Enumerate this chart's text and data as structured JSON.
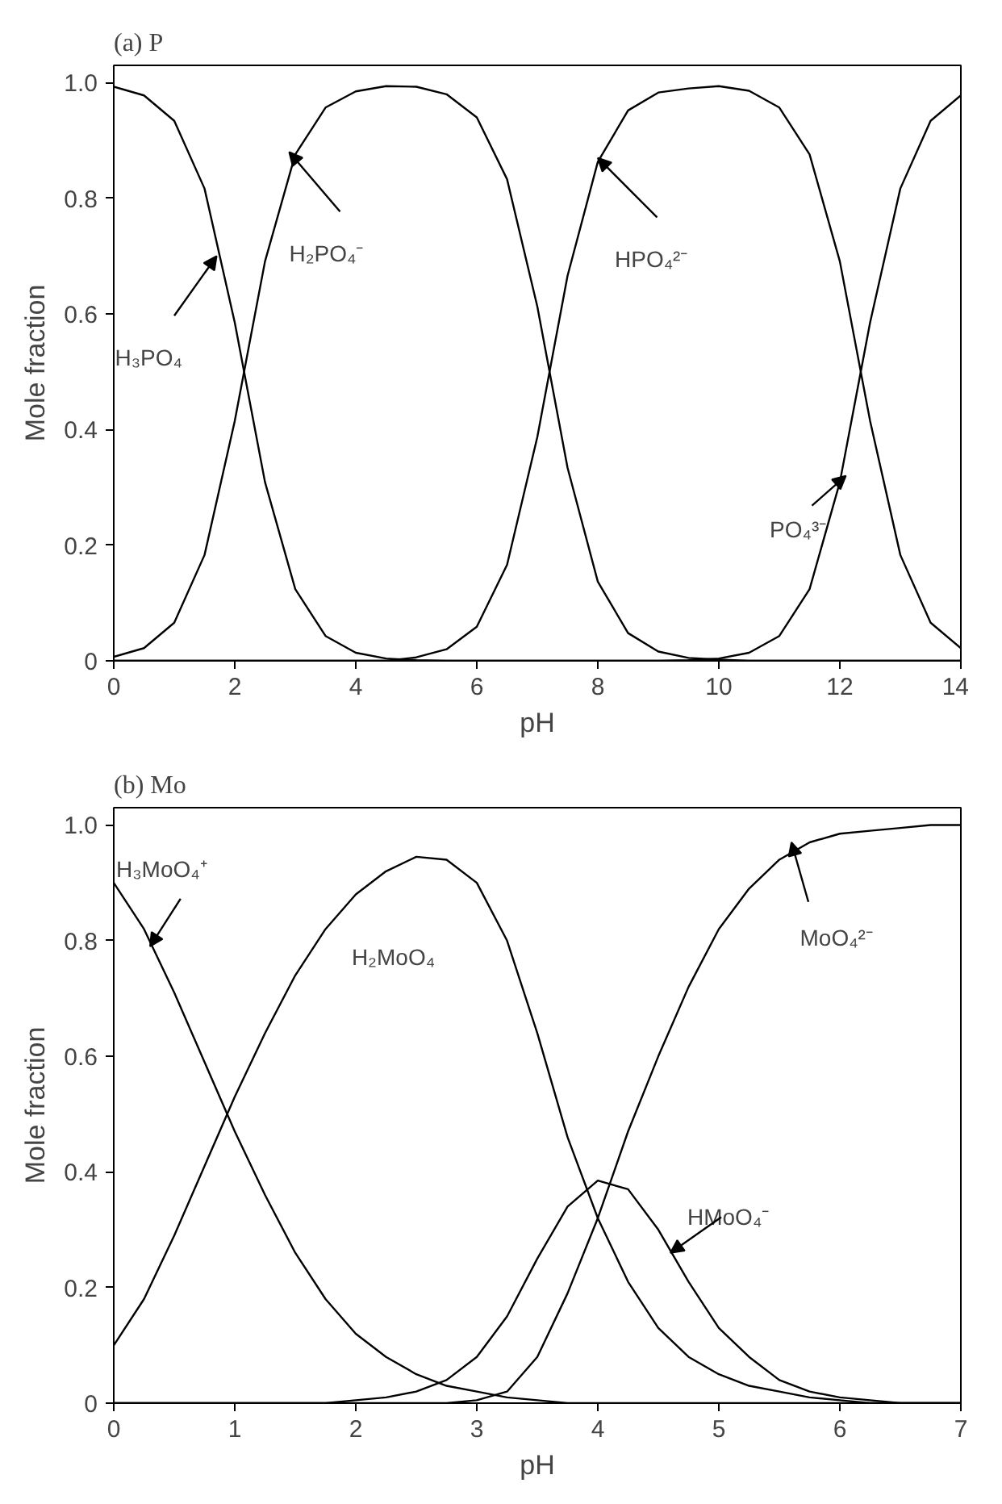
{
  "chart_data": [
    {
      "type": "line",
      "title": "(a) P",
      "xlabel": "pH",
      "ylabel": "Mole fraction",
      "x": [
        0,
        0.5,
        1,
        1.5,
        2,
        2.5,
        3,
        3.5,
        4,
        4.5,
        5,
        5.5,
        6,
        6.5,
        7,
        7.5,
        8,
        8.5,
        9,
        9.5,
        10,
        10.5,
        11,
        11.5,
        12,
        12.5,
        13,
        13.5,
        14
      ],
      "series": [
        {
          "color": "#000000",
          "values": [
            0.993,
            0.978,
            0.934,
            0.817,
            0.585,
            0.309,
            0.124,
            0.043,
            0.014,
            0.004,
            0.001,
            0,
            0,
            0,
            0,
            0,
            0,
            0,
            0,
            0,
            0,
            0,
            0,
            0,
            0,
            0,
            0,
            0,
            0
          ]
        },
        {
          "color": "#000000",
          "values": [
            0.007,
            0.022,
            0.066,
            0.183,
            0.415,
            0.691,
            0.876,
            0.957,
            0.985,
            0.994,
            0.993,
            0.98,
            0.94,
            0.833,
            0.613,
            0.334,
            0.137,
            0.048,
            0.016,
            0.005,
            0.002,
            0,
            0,
            0,
            0,
            0,
            0,
            0,
            0
          ]
        },
        {
          "color": "#000000",
          "values": [
            0,
            0,
            0,
            0,
            0,
            0,
            0,
            0,
            0,
            0,
            0.006,
            0.02,
            0.059,
            0.166,
            0.387,
            0.666,
            0.863,
            0.952,
            0.983,
            0.99,
            0.994,
            0.986,
            0.957,
            0.876,
            0.691,
            0.415,
            0.183,
            0.066,
            0.022
          ]
        },
        {
          "color": "#000000",
          "values": [
            0,
            0,
            0,
            0,
            0,
            0,
            0,
            0,
            0,
            0,
            0,
            0,
            0,
            0,
            0,
            0,
            0,
            0,
            0,
            0.001,
            0.004,
            0.014,
            0.043,
            0.124,
            0.309,
            0.585,
            0.817,
            0.934,
            0.978
          ]
        }
      ],
      "xlim": [
        0,
        14
      ],
      "ylim": [
        0,
        1.03
      ],
      "xticks": [
        0,
        2,
        4,
        6,
        8,
        10,
        12,
        14
      ],
      "yticks": [
        0,
        {
          "value": 0.2,
          "label": "0.2"
        },
        {
          "value": 0.4,
          "label": "0.4"
        },
        {
          "value": 0.6,
          "label": "0.6"
        },
        {
          "value": 0.8,
          "label": "0.8"
        },
        {
          "value": 1,
          "label": "1.0"
        }
      ],
      "annotations": [
        {
          "text": "H₃PO₄",
          "x": 1.7,
          "y": 0.7
        },
        {
          "text": "H₂PO₄⁻",
          "x": 2.9,
          "y": 0.88
        },
        {
          "text": "HPO₄²⁻",
          "x": 8.0,
          "y": 0.87
        },
        {
          "text": "PO₄³⁻",
          "x": 12.1,
          "y": 0.32
        }
      ]
    },
    {
      "type": "line",
      "title": "(b) Mo",
      "xlabel": "pH",
      "ylabel": "Mole fraction",
      "x": [
        0,
        0.25,
        0.5,
        0.75,
        1,
        1.25,
        1.5,
        1.75,
        2,
        2.25,
        2.5,
        2.75,
        3,
        3.25,
        3.5,
        3.75,
        4,
        4.25,
        4.5,
        4.75,
        5,
        5.25,
        5.5,
        5.75,
        6,
        6.25,
        6.5,
        6.75,
        7
      ],
      "series": [
        {
          "color": "#000000",
          "values": [
            0.9,
            0.82,
            0.71,
            0.59,
            0.47,
            0.36,
            0.26,
            0.18,
            0.12,
            0.08,
            0.05,
            0.03,
            0.02,
            0.01,
            0.005,
            0,
            0,
            0,
            0,
            0,
            0,
            0,
            0,
            0,
            0,
            0,
            0,
            0,
            0
          ]
        },
        {
          "color": "#000000",
          "values": [
            0.1,
            0.18,
            0.29,
            0.41,
            0.53,
            0.64,
            0.74,
            0.82,
            0.88,
            0.92,
            0.945,
            0.94,
            0.9,
            0.8,
            0.64,
            0.46,
            0.32,
            0.21,
            0.13,
            0.08,
            0.05,
            0.03,
            0.02,
            0.01,
            0.005,
            0,
            0,
            0,
            0
          ]
        },
        {
          "color": "#000000",
          "values": [
            0,
            0,
            0,
            0,
            0,
            0,
            0,
            0,
            0.005,
            0.01,
            0.02,
            0.04,
            0.08,
            0.15,
            0.25,
            0.34,
            0.385,
            0.37,
            0.3,
            0.21,
            0.13,
            0.08,
            0.04,
            0.02,
            0.01,
            0.005,
            0,
            0,
            0
          ]
        },
        {
          "color": "#000000",
          "values": [
            0,
            0,
            0,
            0,
            0,
            0,
            0,
            0,
            0,
            0,
            0,
            0,
            0.005,
            0.02,
            0.08,
            0.19,
            0.32,
            0.47,
            0.6,
            0.72,
            0.82,
            0.89,
            0.94,
            0.97,
            0.985,
            0.99,
            0.995,
            1.0,
            1.0
          ]
        }
      ],
      "xlim": [
        0,
        7
      ],
      "ylim": [
        0,
        1.03
      ],
      "xticks": [
        0,
        1,
        2,
        3,
        4,
        5,
        6,
        7
      ],
      "yticks": [
        0,
        {
          "value": 0.2,
          "label": "0.2"
        },
        {
          "value": 0.4,
          "label": "0.4"
        },
        {
          "value": 0.6,
          "label": "0.6"
        },
        {
          "value": 0.8,
          "label": "0.8"
        },
        {
          "value": 1,
          "label": "1.0"
        }
      ],
      "annotations": [
        {
          "text": "H₃MoO₄⁺",
          "x": 0.3,
          "y": 0.79
        },
        "H₂MoO₄",
        {
          "text": "HMoO₄⁻",
          "x": 4.6,
          "y": 0.26
        },
        {
          "text": "MoO₄²⁻",
          "x": 5.6,
          "y": 0.97
        }
      ]
    }
  ]
}
